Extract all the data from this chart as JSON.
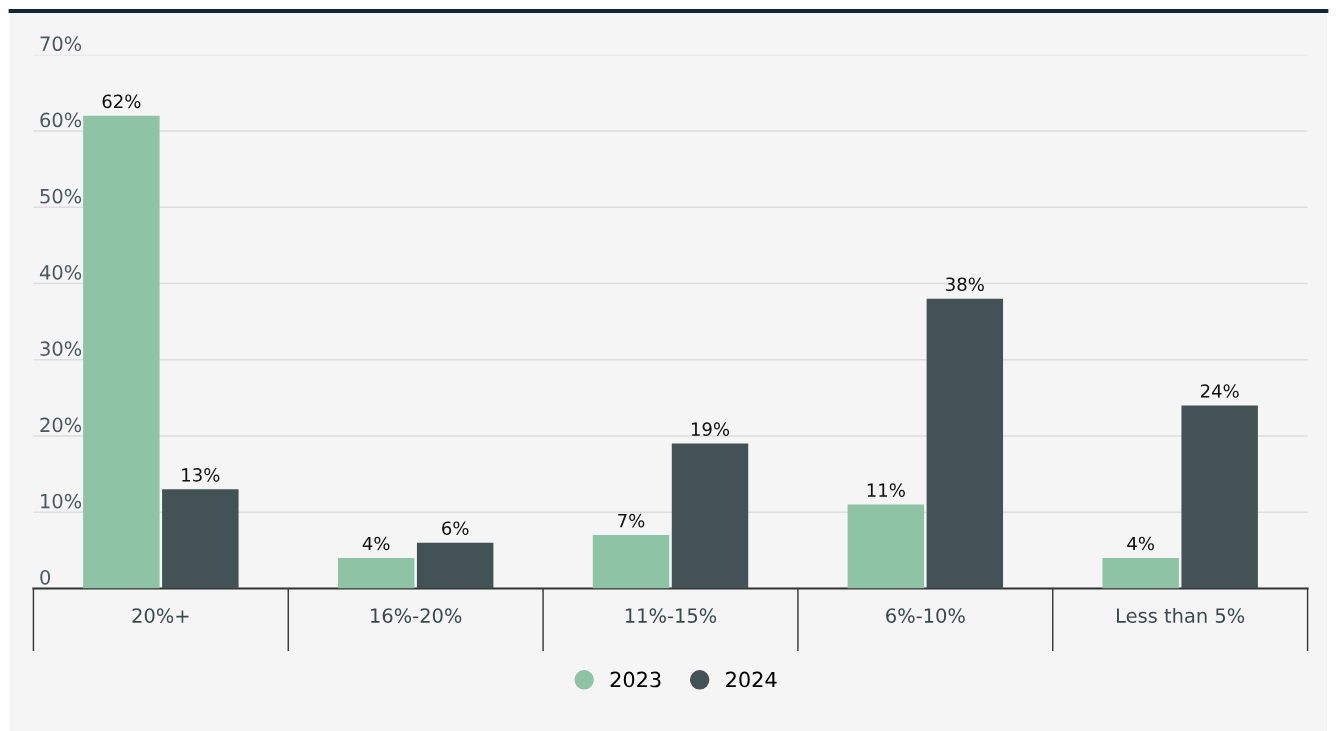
{
  "chart_data": {
    "type": "bar",
    "categories": [
      "20%+",
      "16%-20%",
      "11%-15%",
      "6%-10%",
      "Less than 5%"
    ],
    "series": [
      {
        "name": "2023",
        "color": "#8fc3a6",
        "values": [
          62,
          4,
          7,
          11,
          4
        ],
        "value_labels": [
          "62%",
          "4%",
          "7%",
          "11%",
          "4%"
        ]
      },
      {
        "name": "2024",
        "color": "#435254",
        "values": [
          13,
          6,
          19,
          38,
          24
        ],
        "value_labels": [
          "13%",
          "6%",
          "19%",
          "38%",
          "24%"
        ]
      }
    ],
    "ylim": [
      0,
      70
    ],
    "yticks": [
      {
        "value": 0,
        "label": "0"
      },
      {
        "value": 10,
        "label": "10%"
      },
      {
        "value": 20,
        "label": "20%"
      },
      {
        "value": 30,
        "label": "30%"
      },
      {
        "value": 40,
        "label": "40%"
      },
      {
        "value": 50,
        "label": "50%"
      },
      {
        "value": 60,
        "label": "60%"
      },
      {
        "value": 70,
        "label": "70%"
      }
    ],
    "grid": "y",
    "legend": "bottom"
  }
}
